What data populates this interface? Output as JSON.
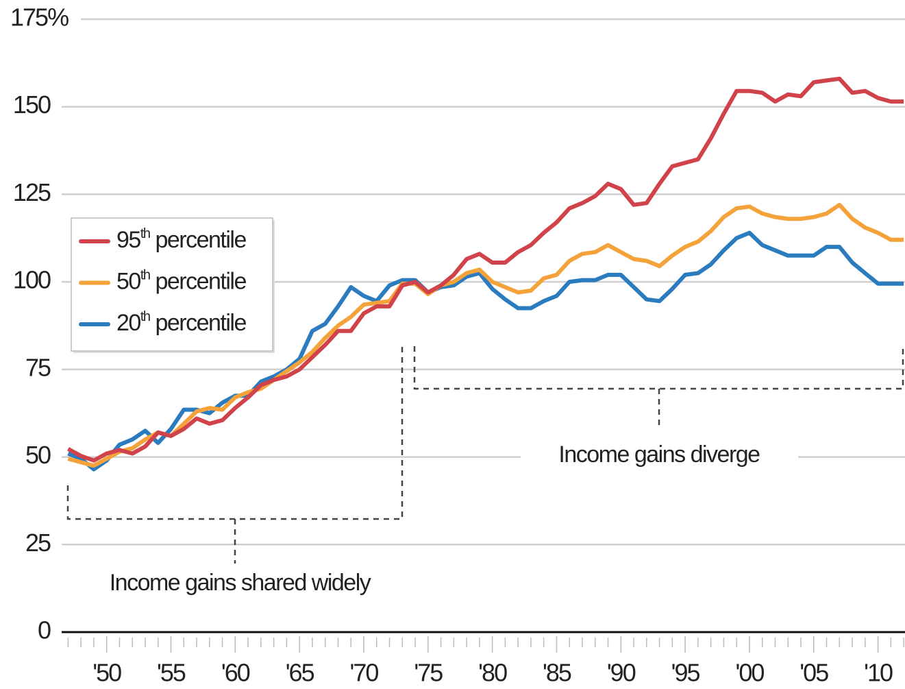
{
  "chart_data": {
    "type": "line",
    "annotations": [
      "Income gains shared widely",
      "Income gains diverge"
    ],
    "x": [
      1947,
      1948,
      1949,
      1950,
      1951,
      1952,
      1953,
      1954,
      1955,
      1956,
      1957,
      1958,
      1959,
      1960,
      1961,
      1962,
      1963,
      1964,
      1965,
      1966,
      1967,
      1968,
      1969,
      1970,
      1971,
      1972,
      1973,
      1974,
      1975,
      1976,
      1977,
      1978,
      1979,
      1980,
      1981,
      1982,
      1983,
      1984,
      1985,
      1986,
      1987,
      1988,
      1989,
      1990,
      1991,
      1992,
      1993,
      1994,
      1995,
      1996,
      1997,
      1998,
      1999,
      2000,
      2001,
      2002,
      2003,
      2004,
      2005,
      2006,
      2007,
      2008,
      2009,
      2010,
      2011,
      2012
    ],
    "series": [
      {
        "name": "95th percentile",
        "color": "#d1434a",
        "values": [
          52.3,
          50.3,
          49,
          51,
          52,
          51,
          53,
          57,
          56,
          58,
          61,
          59.5,
          60.5,
          64,
          67,
          70.5,
          72,
          73,
          75,
          78.5,
          82,
          86,
          86,
          91,
          93,
          93,
          99,
          100,
          97,
          99,
          102,
          106.5,
          108,
          105.5,
          105.5,
          108.5,
          110.5,
          114,
          117,
          121,
          122.5,
          124.5,
          128,
          126.5,
          122,
          122.5,
          128,
          133,
          134,
          135,
          141,
          148,
          154.5,
          154.5,
          154,
          151.5,
          153.5,
          153,
          157,
          157.5,
          158,
          154,
          154.5,
          152.5,
          151.5,
          151.5
        ]
      },
      {
        "name": "50th percentile",
        "color": "#f4a23a",
        "values": [
          49.5,
          48.5,
          47.5,
          49.5,
          51.5,
          52.5,
          55,
          57,
          56,
          59.5,
          63,
          64,
          63.5,
          67,
          68.5,
          69.5,
          72,
          74.5,
          77,
          80,
          84,
          87.5,
          90,
          93.5,
          94,
          94.5,
          99.5,
          99.5,
          96.5,
          99,
          100,
          102.5,
          103.5,
          100,
          98.5,
          97,
          97.5,
          101,
          102,
          106,
          108,
          108.5,
          110.5,
          108.5,
          106.5,
          106,
          104.5,
          107.5,
          110,
          111.5,
          114.5,
          118.5,
          121,
          121.5,
          119.5,
          118.5,
          118,
          118,
          118.5,
          119.5,
          122,
          118,
          115.5,
          114,
          112,
          112
        ]
      },
      {
        "name": "20th percentile",
        "color": "#2b7bbf",
        "values": [
          51,
          49.5,
          46.5,
          49,
          53.5,
          55,
          57.5,
          54,
          58,
          63.5,
          63.5,
          62.5,
          65.5,
          67.5,
          67.5,
          71.5,
          73,
          75,
          78,
          86,
          88,
          93,
          98.5,
          96,
          94.5,
          99,
          100.5,
          100.5,
          97,
          98.5,
          99,
          101.5,
          102.5,
          98,
          95,
          92.5,
          92.5,
          94.5,
          96,
          100,
          100.5,
          100.5,
          102,
          102,
          98.5,
          95,
          94.5,
          98,
          102,
          102.5,
          105,
          109,
          112.5,
          114,
          110.5,
          109,
          107.5,
          107.5,
          107.5,
          110,
          110,
          105.5,
          102.5,
          99.5,
          99.5,
          99.5
        ]
      }
    ],
    "xlim": [
      1946.5,
      2012.1
    ],
    "xticks": [
      {
        "value": 1950,
        "label": "'50"
      },
      {
        "value": 1955,
        "label": "'55"
      },
      {
        "value": 1960,
        "label": "'60"
      },
      {
        "value": 1965,
        "label": "'65"
      },
      {
        "value": 1970,
        "label": "'70"
      },
      {
        "value": 1975,
        "label": "'75"
      },
      {
        "value": 1980,
        "label": "'80"
      },
      {
        "value": 1985,
        "label": "'85"
      },
      {
        "value": 1990,
        "label": "'90"
      },
      {
        "value": 1995,
        "label": "'95"
      },
      {
        "value": 2000,
        "label": "'00"
      },
      {
        "value": 2005,
        "label": "'05"
      },
      {
        "value": 2010,
        "label": "'10"
      }
    ],
    "xminorticks": [
      1947,
      1948,
      1949,
      1951,
      1952,
      1953,
      1954,
      1956,
      1957,
      1958,
      1959,
      1961,
      1962,
      1963,
      1964,
      1966,
      1967,
      1968,
      1969,
      1971,
      1972,
      1973,
      1974,
      1976,
      1977,
      1978,
      1979,
      1981,
      1982,
      1983,
      1984,
      1986,
      1987,
      1988,
      1989,
      1991,
      1992,
      1993,
      1994,
      1996,
      1997,
      1998,
      1999,
      2001,
      2002,
      2003,
      2004,
      2006,
      2007,
      2008,
      2009,
      2011,
      2012
    ],
    "ylim": [
      0,
      175
    ],
    "yticks": [
      0,
      25,
      50,
      75,
      100,
      125,
      150,
      {
        "value": 175,
        "label": "175%"
      }
    ],
    "grid": true,
    "legend": "left"
  }
}
